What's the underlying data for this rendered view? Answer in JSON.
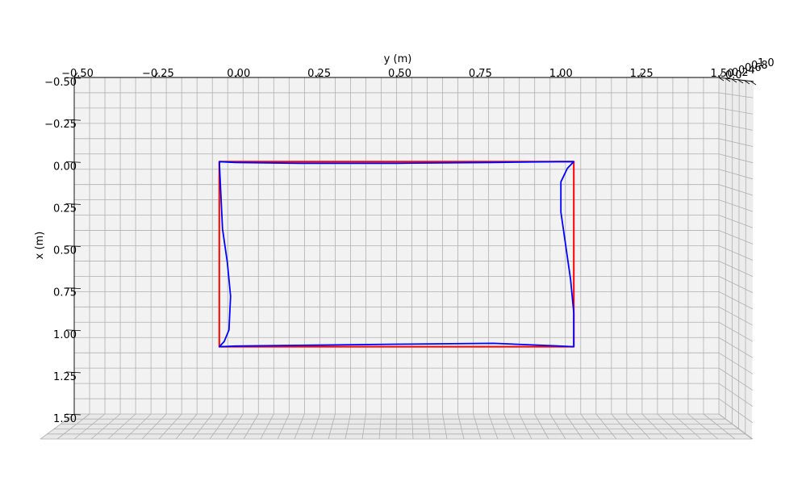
{
  "chart_data": {
    "type": "line",
    "projection": "3d",
    "xlabel": "y (m)",
    "ylabel": "x (m)",
    "zlabel": "",
    "horizontal_axis": {
      "label": "y (m)",
      "lim": [
        -0.5,
        1.5
      ],
      "ticks": [
        "−0.50",
        "−0.25",
        "0.00",
        "0.25",
        "0.50",
        "0.75",
        "1.00",
        "1.25",
        "1.50"
      ],
      "tick_values": [
        -0.5,
        -0.25,
        0.0,
        0.25,
        0.5,
        0.75,
        1.0,
        1.25,
        1.5
      ]
    },
    "vertical_axis": {
      "label": "x (m)",
      "lim": [
        -0.5,
        1.5
      ],
      "ticks": [
        "−0.50",
        "−0.25",
        "0.00",
        "0.25",
        "0.50",
        "0.75",
        "1.00",
        "1.25",
        "1.50"
      ],
      "tick_values": [
        -0.5,
        -0.25,
        0.0,
        0.25,
        0.5,
        0.75,
        1.0,
        1.25,
        1.5
      ]
    },
    "depth_axis": {
      "ticks": [
        "0.0",
        "0.2",
        "0.4",
        "0.6",
        "0.8",
        "1.0"
      ]
    },
    "grid": true,
    "series": [
      {
        "color": "#ff0000",
        "points": [
          [
            -0.05,
            0.0
          ],
          [
            1.05,
            0.0
          ],
          [
            1.05,
            1.1
          ],
          [
            -0.05,
            1.1
          ],
          [
            -0.05,
            0.0
          ],
          [
            0.0,
            0.0
          ]
        ]
      },
      {
        "color": "#0000ff",
        "points": [
          [
            -0.05,
            0.0
          ],
          [
            0.0,
            0.005
          ],
          [
            0.2,
            0.01
          ],
          [
            0.5,
            0.01
          ],
          [
            0.8,
            0.005
          ],
          [
            1.0,
            0.0
          ],
          [
            1.05,
            0.0
          ],
          [
            1.03,
            0.04
          ],
          [
            1.01,
            0.12
          ],
          [
            1.01,
            0.3
          ],
          [
            1.025,
            0.5
          ],
          [
            1.04,
            0.7
          ],
          [
            1.05,
            0.9
          ],
          [
            1.05,
            1.1
          ],
          [
            1.0,
            1.095
          ],
          [
            0.8,
            1.08
          ],
          [
            0.5,
            1.085
          ],
          [
            0.2,
            1.092
          ],
          [
            0.0,
            1.096
          ],
          [
            -0.05,
            1.1
          ],
          [
            -0.035,
            1.07
          ],
          [
            -0.02,
            1.0
          ],
          [
            -0.015,
            0.8
          ],
          [
            -0.025,
            0.6
          ],
          [
            -0.04,
            0.4
          ],
          [
            -0.045,
            0.2
          ],
          [
            -0.05,
            0.0
          ]
        ]
      }
    ]
  }
}
